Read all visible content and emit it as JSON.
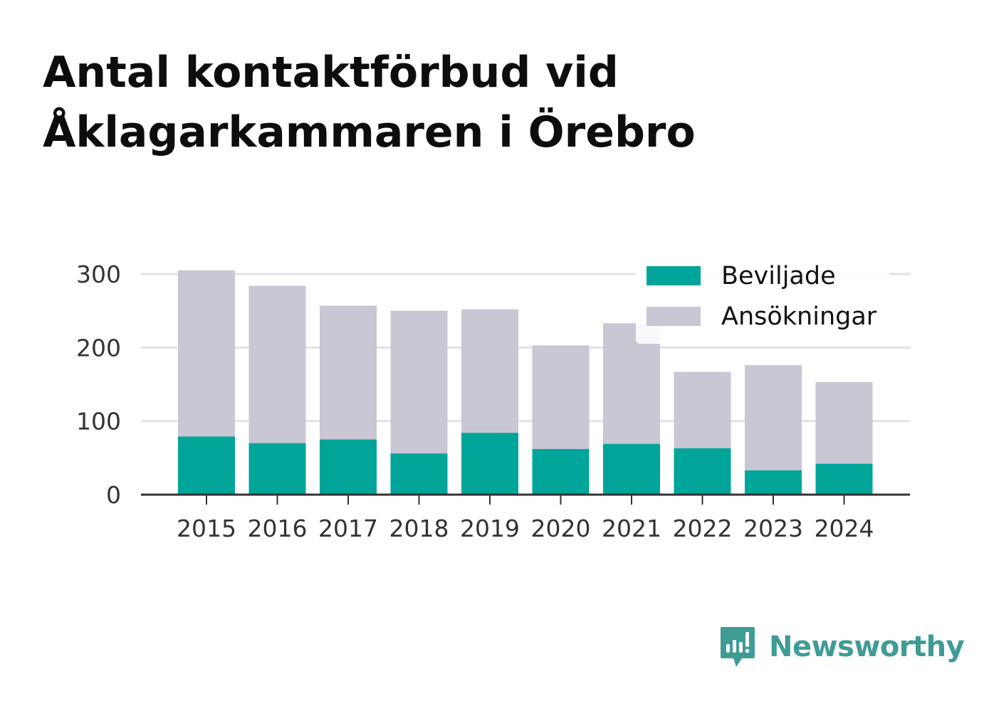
{
  "title_lines": [
    "Antal kontaktförbud vid",
    "Åklagarkammaren i Örebro"
  ],
  "brand": {
    "name": "Newsworthy",
    "icon": "newsworthy-logo-icon",
    "color": "#3f9c95"
  },
  "colors": {
    "beviljade": "#02a59a",
    "ansokningar": "#c9c7d3",
    "grid": "#e2e2e2",
    "axis": "#333333",
    "tick_text": "#333333"
  },
  "chart_data": {
    "type": "bar",
    "stacked_overlay": true,
    "categories": [
      "2015",
      "2016",
      "2017",
      "2018",
      "2019",
      "2020",
      "2021",
      "2022",
      "2023",
      "2024"
    ],
    "series": [
      {
        "name": "Ansökningar",
        "values": [
          305,
          284,
          257,
          250,
          252,
          203,
          233,
          167,
          176,
          153
        ]
      },
      {
        "name": "Beviljade",
        "values": [
          79,
          70,
          75,
          56,
          84,
          62,
          69,
          63,
          33,
          42
        ]
      }
    ],
    "ylim": [
      0,
      300
    ],
    "yticks": [
      0,
      100,
      200,
      300
    ],
    "ytick_labels": [
      "0",
      "100",
      "200",
      "300"
    ],
    "grid": true,
    "legend": {
      "position": "top-right",
      "entries": [
        "Beviljade",
        "Ansökningar"
      ]
    }
  }
}
